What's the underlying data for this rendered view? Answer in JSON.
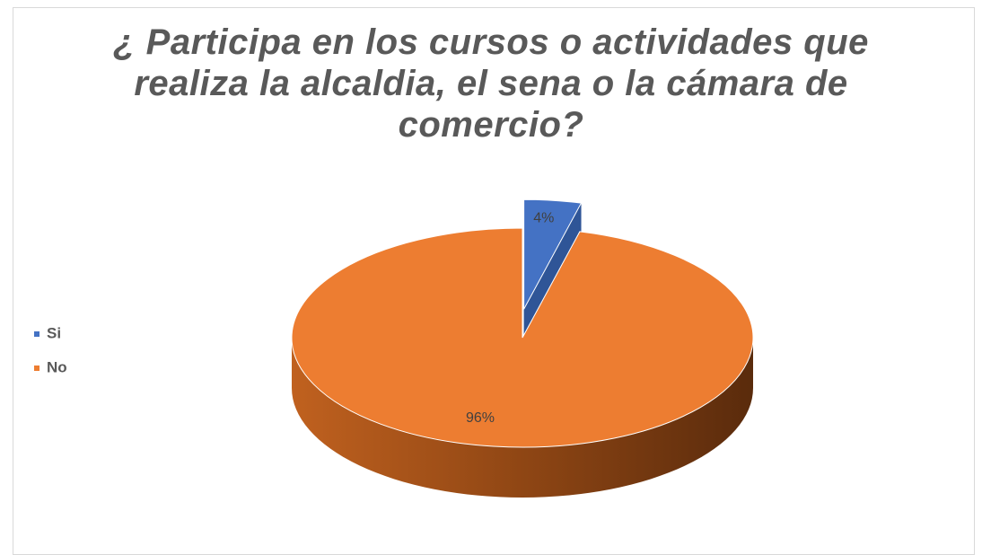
{
  "chart_data": {
    "type": "pie",
    "title": "¿ Participa en los cursos o actividades que realiza la alcaldia, el sena o la cámara de comercio?",
    "categories": [
      "Si",
      "No"
    ],
    "values": [
      4,
      96
    ],
    "value_labels": [
      "4%",
      "96%"
    ],
    "colors": [
      "#4472c4",
      "#ed7d31"
    ],
    "legend": "left"
  }
}
